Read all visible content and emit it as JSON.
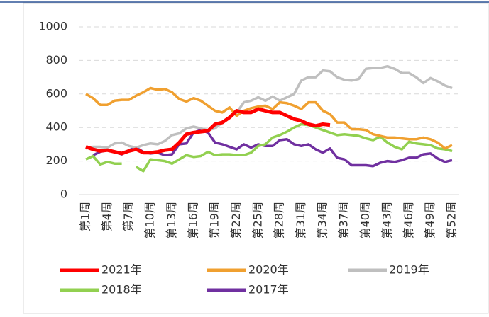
{
  "chart_data": {
    "type": "line",
    "categories": [
      "第1周",
      null,
      null,
      "第4周",
      null,
      null,
      "第7周",
      null,
      null,
      "第10周",
      null,
      null,
      "第13周",
      null,
      null,
      "第16周",
      null,
      null,
      "第19周",
      null,
      null,
      "第22周",
      null,
      null,
      "第25周",
      null,
      null,
      "第28周",
      null,
      null,
      "第31周",
      null,
      null,
      "第34周",
      null,
      null,
      "第37周",
      null,
      null,
      "第40周",
      null,
      null,
      "第43周",
      null,
      null,
      "第46周",
      null,
      null,
      "第49周",
      null,
      null,
      "第52周"
    ],
    "series": [
      {
        "name": "2021年",
        "color": "#ff0000",
        "values": [
          285,
          270,
          260,
          265,
          255,
          245,
          260,
          270,
          250,
          250,
          255,
          265,
          270,
          310,
          360,
          370,
          375,
          380,
          420,
          430,
          460,
          500,
          490,
          490,
          510,
          500,
          490,
          490,
          470,
          450,
          440,
          420,
          410,
          420,
          415,
          null,
          null,
          null,
          null,
          null,
          null,
          null,
          null,
          null,
          null,
          null,
          null,
          null,
          null,
          null,
          null,
          null
        ]
      },
      {
        "name": "2020年",
        "color": "#f0a030",
        "values": [
          600,
          575,
          535,
          535,
          560,
          565,
          565,
          590,
          610,
          635,
          625,
          630,
          610,
          570,
          555,
          575,
          560,
          530,
          500,
          490,
          520,
          470,
          500,
          515,
          525,
          530,
          510,
          550,
          545,
          530,
          510,
          550,
          550,
          500,
          480,
          430,
          430,
          390,
          390,
          385,
          360,
          350,
          340,
          340,
          335,
          330,
          330,
          340,
          330,
          310,
          275,
          295
        ]
      },
      {
        "name": "2019年",
        "color": "#bfbfbf",
        "values": [
          275,
          285,
          285,
          280,
          305,
          310,
          290,
          280,
          295,
          305,
          300,
          320,
          355,
          365,
          395,
          405,
          395,
          385,
          395,
          430,
          460,
          490,
          550,
          560,
          580,
          560,
          585,
          560,
          580,
          600,
          680,
          700,
          700,
          740,
          735,
          700,
          685,
          680,
          690,
          750,
          755,
          755,
          765,
          750,
          725,
          725,
          700,
          665,
          695,
          675,
          650,
          635
        ]
      },
      {
        "name": "2018年",
        "color": "#92d050",
        "values": [
          210,
          230,
          180,
          195,
          185,
          185,
          null,
          165,
          140,
          210,
          205,
          200,
          185,
          210,
          235,
          225,
          230,
          255,
          235,
          240,
          240,
          235,
          235,
          250,
          290,
          300,
          340,
          355,
          375,
          400,
          420,
          415,
          400,
          385,
          370,
          355,
          360,
          355,
          350,
          335,
          325,
          345,
          310,
          285,
          270,
          315,
          305,
          300,
          295,
          275,
          270,
          260
        ]
      },
      {
        "name": "2017年",
        "color": "#7030a0",
        "values": [
          null,
          235,
          255,
          265,
          255,
          240,
          265,
          280,
          255,
          245,
          250,
          235,
          240,
          300,
          305,
          370,
          385,
          370,
          310,
          300,
          285,
          270,
          300,
          280,
          300,
          290,
          290,
          325,
          330,
          300,
          290,
          300,
          270,
          250,
          275,
          220,
          210,
          175,
          175,
          175,
          170,
          190,
          200,
          195,
          205,
          220,
          220,
          240,
          245,
          215,
          195,
          205
        ]
      }
    ],
    "ylim": [
      0,
      1000
    ],
    "yticks": [
      0,
      200,
      400,
      600,
      800,
      1000
    ],
    "grid": true
  }
}
